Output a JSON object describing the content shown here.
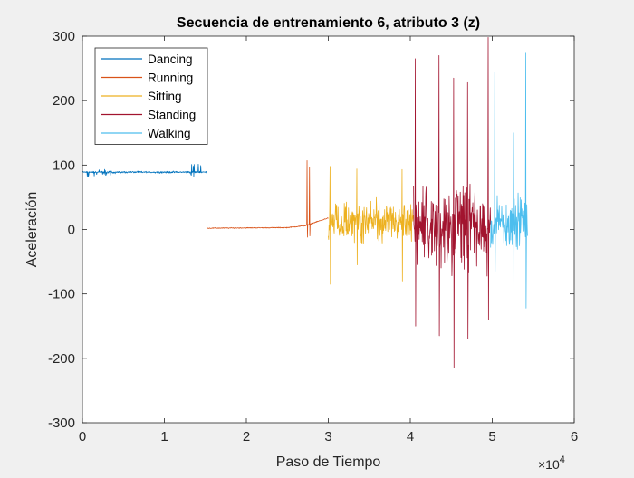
{
  "chart_data": {
    "type": "line",
    "title": "Secuencia de entrenamiento 6, atributo 3 (z)",
    "xlabel": "Paso de Tiempo",
    "ylabel": "Aceleración",
    "x_exponent_label": "×10",
    "x_exponent_power": "4",
    "xlim": [
      0,
      6
    ],
    "ylim": [
      -300,
      300
    ],
    "x_ticks": [
      0,
      1,
      2,
      3,
      4,
      5,
      6
    ],
    "x_tick_labels": [
      "0",
      "1",
      "2",
      "3",
      "4",
      "5",
      "6"
    ],
    "y_ticks": [
      300,
      200,
      100,
      0,
      -100,
      -200,
      -300
    ],
    "y_tick_labels": [
      "300",
      "200",
      "100",
      "0",
      "-100",
      "-200",
      "-300"
    ],
    "legend_position": "top-left",
    "grid": false,
    "series": [
      {
        "name": "Dancing",
        "color": "#0072BD",
        "x_range": [
          0,
          1.52
        ],
        "baseline": 89,
        "spread": 2,
        "bursts": [
          [
            0.05,
            0.4,
            95,
            82
          ],
          [
            1.32,
            1.45,
            102,
            80
          ]
        ],
        "spikes": []
      },
      {
        "name": "Running",
        "color": "#D95319",
        "x_range": [
          1.52,
          3.0
        ],
        "baseline": 2,
        "spread": 1,
        "bursts": [],
        "ramp": [
          [
            1.52,
            2
          ],
          [
            2.5,
            3
          ],
          [
            2.72,
            6
          ],
          [
            3.0,
            18
          ]
        ],
        "spikes": [
          [
            2.74,
            107,
            -12
          ],
          [
            2.77,
            97,
            -10
          ]
        ]
      },
      {
        "name": "Sitting",
        "color": "#EDB120",
        "x_range": [
          3.0,
          4.04
        ],
        "baseline": 12,
        "spread": 45,
        "bursts": [],
        "spikes": [
          [
            3.02,
            98,
            -85
          ],
          [
            3.35,
            94,
            -55
          ],
          [
            3.9,
            93,
            -80
          ]
        ]
      },
      {
        "name": "Standing",
        "color": "#A2142F",
        "x_range": [
          4.04,
          4.98
        ],
        "baseline": 8,
        "spread": 95,
        "bursts": [],
        "spikes": [
          [
            4.06,
            265,
            -150
          ],
          [
            4.35,
            270,
            -165
          ],
          [
            4.53,
            235,
            -215
          ],
          [
            4.7,
            228,
            -170
          ],
          [
            4.95,
            298,
            -140
          ]
        ]
      },
      {
        "name": "Walking",
        "color": "#4DBEEE",
        "x_range": [
          4.98,
          5.43
        ],
        "baseline": 10,
        "spread": 55,
        "bursts": [],
        "spikes": [
          [
            5.03,
            245,
            -65
          ],
          [
            5.26,
            150,
            -105
          ],
          [
            5.41,
            275,
            -122
          ]
        ]
      }
    ]
  }
}
